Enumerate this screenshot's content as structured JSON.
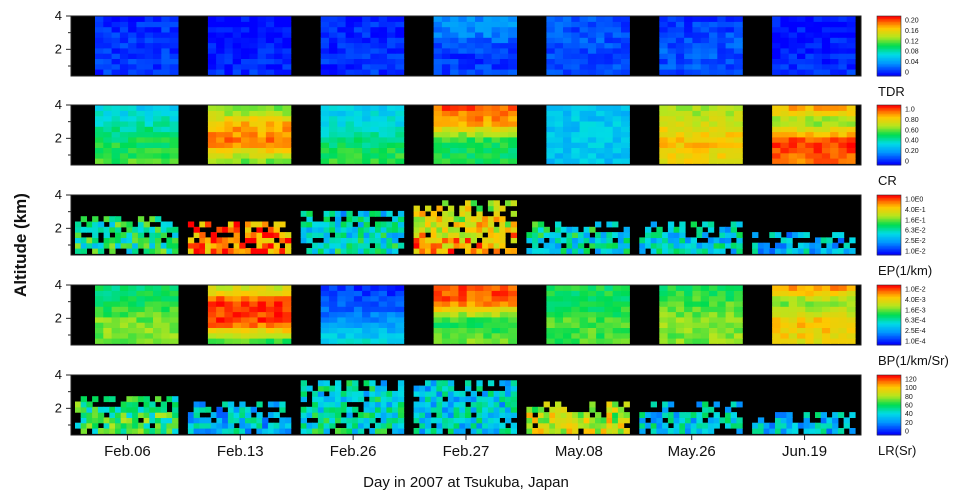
{
  "chart_data": {
    "type": "heatmap",
    "ylabel": "Altitude (km)",
    "xlabel": "Day in 2007 at Tsukuba, Japan",
    "days": [
      "Feb.06",
      "Feb.13",
      "Feb.26",
      "Feb.27",
      "May.08",
      "May.26",
      "Jun.19"
    ],
    "ylim": [
      0.4,
      4
    ],
    "yticks": [
      "2",
      "4"
    ],
    "background": "#000000",
    "panels": [
      {
        "label": "TDR",
        "vmin": 0,
        "vmax": 0.2,
        "ticks": [
          "0.20",
          "0.16",
          "0.12",
          "0.08",
          "0.04",
          "0"
        ],
        "scale": "linear",
        "cloud_tops": null,
        "days": [
          [
            0.07,
            0.07,
            0.06,
            0.05
          ],
          [
            0.05,
            0.03,
            0.01,
            0.0
          ],
          [
            0.06,
            0.05,
            0.05,
            0.05
          ],
          [
            0.08,
            0.07,
            0.18,
            0.19
          ],
          [
            0.09,
            0.1,
            0.11,
            0.09
          ],
          [
            0.1,
            0.11,
            0.09,
            0.07
          ],
          [
            0.05,
            0.04,
            0.03,
            0.01
          ]
        ]
      },
      {
        "label": "CR",
        "vmin": 0,
        "vmax": 1,
        "ticks": [
          "1.0",
          "0.80",
          "0.60",
          "0.40",
          "0.20",
          "0"
        ],
        "scale": "linear",
        "cloud_tops": null,
        "days": [
          [
            0.55,
            0.5,
            0.4,
            0.3
          ],
          [
            0.6,
            0.9,
            0.8,
            0.5
          ],
          [
            0.55,
            0.45,
            0.35,
            0.3
          ],
          [
            0.5,
            0.5,
            0.85,
            0.95
          ],
          [
            0.3,
            0.3,
            0.3,
            0.3
          ],
          [
            0.75,
            0.8,
            0.7,
            0.6
          ],
          [
            0.9,
            0.95,
            0.6,
            0.9
          ]
        ]
      },
      {
        "label": "EP(1/km)",
        "vmin": 0.01,
        "vmax": 1,
        "ticks": [
          "1.0E0",
          "4.0E-1",
          "1.6E-1",
          "6.3E-2",
          "2.5E-2",
          "1.0E-2"
        ],
        "scale": "log",
        "cloud_tops": [
          2.6,
          2.3,
          2.8,
          3.6,
          2.2,
          2.2,
          1.6
        ],
        "days": [
          [
            0.45,
            0.45
          ],
          [
            0.9,
            0.85
          ],
          [
            0.4,
            0.3
          ],
          [
            0.85,
            0.6
          ],
          [
            0.35,
            0.5
          ],
          [
            0.35,
            0.35
          ],
          [
            0.3,
            0.3
          ]
        ]
      },
      {
        "label": "BP(1/km/Sr)",
        "vmin": 0.0001,
        "vmax": 0.01,
        "ticks": [
          "1.0E-2",
          "4.0E-3",
          "1.6E-3",
          "6.3E-4",
          "2.5E-4",
          "1.0E-4"
        ],
        "scale": "log",
        "cloud_tops": null,
        "days": [
          [
            0.6,
            0.6,
            0.5,
            0.45
          ],
          [
            0.55,
            0.95,
            0.95,
            0.6
          ],
          [
            0.35,
            0.2,
            0.1,
            0.05
          ],
          [
            0.6,
            0.5,
            0.9,
            0.95
          ],
          [
            0.55,
            0.55,
            0.5,
            0.5
          ],
          [
            0.6,
            0.6,
            0.55,
            0.5
          ],
          [
            0.75,
            0.8,
            0.6,
            0.95
          ]
        ]
      },
      {
        "label": "LR(Sr)",
        "vmin": 0,
        "vmax": 120,
        "ticks": [
          "120",
          "100",
          "80",
          "60",
          "40",
          "20",
          "0"
        ],
        "scale": "linear",
        "cloud_tops": [
          2.6,
          2.3,
          3.6,
          3.6,
          2.2,
          2.2,
          1.6
        ],
        "days": [
          [
            0.5,
            0.45
          ],
          [
            0.3,
            0.25
          ],
          [
            0.4,
            0.35
          ],
          [
            0.35,
            0.3
          ],
          [
            0.7,
            0.6
          ],
          [
            0.35,
            0.3
          ],
          [
            0.3,
            0.3
          ]
        ]
      }
    ]
  }
}
